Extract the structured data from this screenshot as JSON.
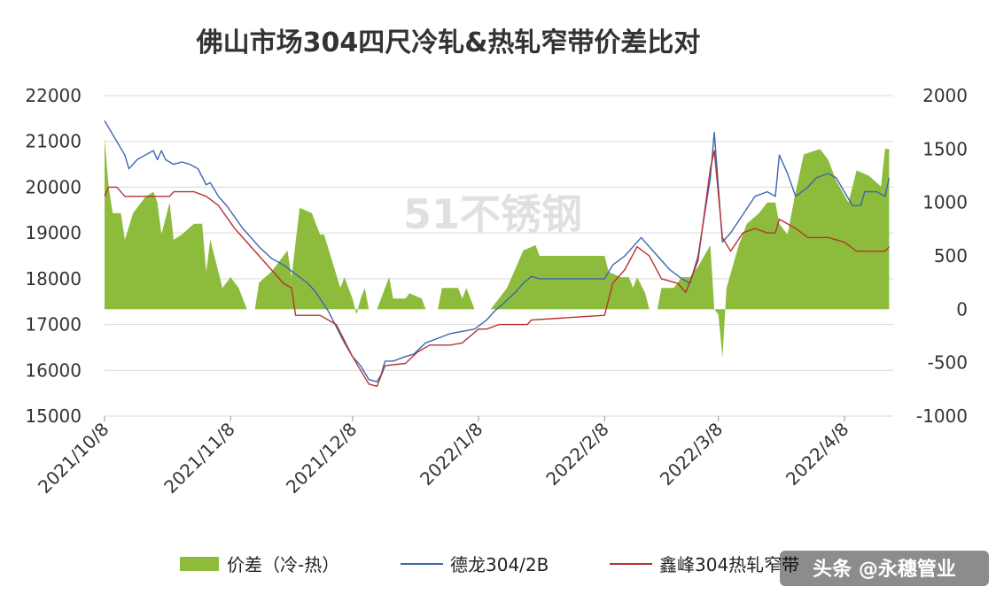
{
  "watermark": "51不锈钢",
  "source_credit": "头条 @永穗管业",
  "colors": {
    "area": "#8dbb3c",
    "line1": "#3a66b0",
    "line2": "#b83232",
    "grid": "#d9d9d9"
  },
  "chart_data": {
    "type": "line",
    "title": "佛山市场304四尺冷轧&热轧窄带价差比对",
    "x_start": "2021/10/8",
    "x_end": "2022/4/20",
    "x_ticks": [
      "2021/10/8",
      "2021/11/8",
      "2021/12/8",
      "2022/1/8",
      "2022/2/8",
      "2022/3/8",
      "2022/4/8"
    ],
    "y_left": {
      "min": 15000,
      "max": 22000,
      "ticks": [
        15000,
        16000,
        17000,
        18000,
        19000,
        20000,
        21000,
        22000
      ]
    },
    "y_right": {
      "min": -1000,
      "max": 2000,
      "ticks": [
        -1000,
        -500,
        0,
        500,
        1000,
        1500,
        2000
      ]
    },
    "grid": true,
    "legend_position": "bottom",
    "series": [
      {
        "name": "价差（冷-热）",
        "kind": "area",
        "axis": "right",
        "points": [
          [
            "2021/10/8",
            1600
          ],
          [
            "2021/10/9",
            1150
          ],
          [
            "2021/10/10",
            900
          ],
          [
            "2021/10/12",
            900
          ],
          [
            "2021/10/13",
            650
          ],
          [
            "2021/10/15",
            900
          ],
          [
            "2021/10/18",
            1050
          ],
          [
            "2021/10/20",
            1100
          ],
          [
            "2021/10/21",
            1000
          ],
          [
            "2021/10/22",
            700
          ],
          [
            "2021/10/24",
            1000
          ],
          [
            "2021/10/25",
            650
          ],
          [
            "2021/10/27",
            700
          ],
          [
            "2021/10/30",
            800
          ],
          [
            "2021/11/1",
            800
          ],
          [
            "2021/11/2",
            350
          ],
          [
            "2021/11/3",
            650
          ],
          [
            "2021/11/5",
            350
          ],
          [
            "2021/11/6",
            200
          ],
          [
            "2021/11/8",
            300
          ],
          [
            "2021/11/10",
            200
          ],
          [
            "2021/11/12",
            0
          ],
          [
            "2021/11/14",
            0
          ],
          [
            "2021/11/15",
            250
          ],
          [
            "2021/11/18",
            350
          ],
          [
            "2021/11/20",
            450
          ],
          [
            "2021/11/22",
            550
          ],
          [
            "2021/11/23",
            300
          ],
          [
            "2021/11/25",
            950
          ],
          [
            "2021/11/28",
            900
          ],
          [
            "2021/11/30",
            700
          ],
          [
            "2021/12/1",
            700
          ],
          [
            "2021/12/3",
            450
          ],
          [
            "2021/12/5",
            200
          ],
          [
            "2021/12/6",
            300
          ],
          [
            "2021/12/8",
            100
          ],
          [
            "2021/12/9",
            -50
          ],
          [
            "2021/12/10",
            100
          ],
          [
            "2021/12/11",
            200
          ],
          [
            "2021/12/12",
            0
          ],
          [
            "2021/12/14",
            0
          ],
          [
            "2021/12/15",
            100
          ],
          [
            "2021/12/17",
            300
          ],
          [
            "2021/12/18",
            100
          ],
          [
            "2021/12/21",
            100
          ],
          [
            "2021/12/22",
            150
          ],
          [
            "2021/12/25",
            100
          ],
          [
            "2021/12/26",
            0
          ],
          [
            "2021/12/29",
            0
          ],
          [
            "2021/12/30",
            200
          ],
          [
            "2022/1/3",
            200
          ],
          [
            "2022/1/4",
            100
          ],
          [
            "2022/1/5",
            200
          ],
          [
            "2022/1/7",
            0
          ],
          [
            "2022/1/11",
            0
          ],
          [
            "2022/1/12",
            50
          ],
          [
            "2022/1/15",
            200
          ],
          [
            "2022/1/19",
            550
          ],
          [
            "2022/1/22",
            600
          ],
          [
            "2022/1/23",
            500
          ],
          [
            "2022/2/8",
            500
          ],
          [
            "2022/2/9",
            350
          ],
          [
            "2022/2/12",
            300
          ],
          [
            "2022/2/14",
            300
          ],
          [
            "2022/2/15",
            200
          ],
          [
            "2022/2/16",
            300
          ],
          [
            "2022/2/18",
            150
          ],
          [
            "2022/2/19",
            0
          ],
          [
            "2022/2/21",
            0
          ],
          [
            "2022/2/22",
            200
          ],
          [
            "2022/2/25",
            200
          ],
          [
            "2022/2/27",
            300
          ],
          [
            "2022/3/1",
            300
          ],
          [
            "2022/3/3",
            400
          ],
          [
            "2022/3/6",
            600
          ],
          [
            "2022/3/7",
            0
          ],
          [
            "2022/3/8",
            -50
          ],
          [
            "2022/3/9",
            -450
          ],
          [
            "2022/3/10",
            200
          ],
          [
            "2022/3/13",
            600
          ],
          [
            "2022/3/15",
            800
          ],
          [
            "2022/3/18",
            900
          ],
          [
            "2022/3/20",
            1000
          ],
          [
            "2022/3/22",
            1000
          ],
          [
            "2022/3/23",
            800
          ],
          [
            "2022/3/25",
            700
          ],
          [
            "2022/3/27",
            1100
          ],
          [
            "2022/3/29",
            1450
          ],
          [
            "2022/4/2",
            1500
          ],
          [
            "2022/4/4",
            1400
          ],
          [
            "2022/4/6",
            1200
          ],
          [
            "2022/4/9",
            1000
          ],
          [
            "2022/4/11",
            1300
          ],
          [
            "2022/4/14",
            1250
          ],
          [
            "2022/4/17",
            1150
          ],
          [
            "2022/4/18",
            1500
          ],
          [
            "2022/4/19",
            1500
          ]
        ]
      },
      {
        "name": "德龙304/2B",
        "kind": "line",
        "axis": "left",
        "points": [
          [
            "2021/10/8",
            21450
          ],
          [
            "2021/10/9",
            21300
          ],
          [
            "2021/10/11",
            21000
          ],
          [
            "2021/10/13",
            20700
          ],
          [
            "2021/10/14",
            20400
          ],
          [
            "2021/10/16",
            20600
          ],
          [
            "2021/10/18",
            20700
          ],
          [
            "2021/10/20",
            20800
          ],
          [
            "2021/10/21",
            20600
          ],
          [
            "2021/10/22",
            20800
          ],
          [
            "2021/10/23",
            20600
          ],
          [
            "2021/10/25",
            20500
          ],
          [
            "2021/10/27",
            20550
          ],
          [
            "2021/10/29",
            20500
          ],
          [
            "2021/10/31",
            20400
          ],
          [
            "2021/11/2",
            20050
          ],
          [
            "2021/11/3",
            20100
          ],
          [
            "2021/11/5",
            19800
          ],
          [
            "2021/11/7",
            19600
          ],
          [
            "2021/11/9",
            19350
          ],
          [
            "2021/11/11",
            19100
          ],
          [
            "2021/11/13",
            18900
          ],
          [
            "2021/11/15",
            18700
          ],
          [
            "2021/11/18",
            18450
          ],
          [
            "2021/11/21",
            18300
          ],
          [
            "2021/11/24",
            18100
          ],
          [
            "2021/11/27",
            17900
          ],
          [
            "2021/11/29",
            17700
          ],
          [
            "2021/12/2",
            17300
          ],
          [
            "2021/12/4",
            16950
          ],
          [
            "2021/12/6",
            16600
          ],
          [
            "2021/12/8",
            16300
          ],
          [
            "2021/12/10",
            16100
          ],
          [
            "2021/12/12",
            15800
          ],
          [
            "2021/12/14",
            15750
          ],
          [
            "2021/12/15",
            15900
          ],
          [
            "2021/12/16",
            16200
          ],
          [
            "2021/12/18",
            16200
          ],
          [
            "2021/12/21",
            16300
          ],
          [
            "2021/12/23",
            16350
          ],
          [
            "2021/12/26",
            16600
          ],
          [
            "2021/12/29",
            16700
          ],
          [
            "2022/1/1",
            16800
          ],
          [
            "2022/1/4",
            16850
          ],
          [
            "2022/1/7",
            16900
          ],
          [
            "2022/1/10",
            17100
          ],
          [
            "2022/1/12",
            17300
          ],
          [
            "2022/1/14",
            17450
          ],
          [
            "2022/1/17",
            17700
          ],
          [
            "2022/1/19",
            17900
          ],
          [
            "2022/1/21",
            18050
          ],
          [
            "2022/1/23",
            18000
          ],
          [
            "2022/1/25",
            18000
          ],
          [
            "2022/2/8",
            18000
          ],
          [
            "2022/2/10",
            18300
          ],
          [
            "2022/2/13",
            18500
          ],
          [
            "2022/2/15",
            18700
          ],
          [
            "2022/2/17",
            18900
          ],
          [
            "2022/2/19",
            18700
          ],
          [
            "2022/2/21",
            18500
          ],
          [
            "2022/2/24",
            18200
          ],
          [
            "2022/2/27",
            18000
          ],
          [
            "2022/3/1",
            17900
          ],
          [
            "2022/3/3",
            18500
          ],
          [
            "2022/3/6",
            20200
          ],
          [
            "2022/3/7",
            21200
          ],
          [
            "2022/3/8",
            20000
          ],
          [
            "2022/3/9",
            18800
          ],
          [
            "2022/3/11",
            19000
          ],
          [
            "2022/3/14",
            19400
          ],
          [
            "2022/3/17",
            19800
          ],
          [
            "2022/3/20",
            19900
          ],
          [
            "2022/3/22",
            19800
          ],
          [
            "2022/3/23",
            20700
          ],
          [
            "2022/3/25",
            20300
          ],
          [
            "2022/3/27",
            19800
          ],
          [
            "2022/3/30",
            20000
          ],
          [
            "2022/4/1",
            20200
          ],
          [
            "2022/4/4",
            20300
          ],
          [
            "2022/4/6",
            20200
          ],
          [
            "2022/4/8",
            19900
          ],
          [
            "2022/4/10",
            19600
          ],
          [
            "2022/4/12",
            19600
          ],
          [
            "2022/4/13",
            19900
          ],
          [
            "2022/4/16",
            19900
          ],
          [
            "2022/4/18",
            19800
          ],
          [
            "2022/4/19",
            20200
          ]
        ]
      },
      {
        "name": "鑫峰304热轧窄带",
        "kind": "line",
        "axis": "left",
        "points": [
          [
            "2021/10/8",
            19800
          ],
          [
            "2021/10/9",
            20000
          ],
          [
            "2021/10/11",
            20000
          ],
          [
            "2021/10/13",
            19800
          ],
          [
            "2021/10/20",
            19800
          ],
          [
            "2021/10/24",
            19800
          ],
          [
            "2021/10/25",
            19900
          ],
          [
            "2021/10/30",
            19900
          ],
          [
            "2021/11/2",
            19800
          ],
          [
            "2021/11/5",
            19600
          ],
          [
            "2021/11/9",
            19100
          ],
          [
            "2021/11/12",
            18800
          ],
          [
            "2021/11/15",
            18500
          ],
          [
            "2021/11/18",
            18200
          ],
          [
            "2021/11/21",
            17900
          ],
          [
            "2021/11/23",
            17800
          ],
          [
            "2021/11/24",
            17200
          ],
          [
            "2021/11/28",
            17200
          ],
          [
            "2021/11/30",
            17200
          ],
          [
            "2021/12/2",
            17100
          ],
          [
            "2021/12/4",
            17000
          ],
          [
            "2021/12/6",
            16650
          ],
          [
            "2021/12/8",
            16300
          ],
          [
            "2021/12/10",
            16000
          ],
          [
            "2021/12/12",
            15700
          ],
          [
            "2021/12/14",
            15650
          ],
          [
            "2021/12/16",
            16100
          ],
          [
            "2021/12/21",
            16150
          ],
          [
            "2021/12/24",
            16400
          ],
          [
            "2021/12/27",
            16550
          ],
          [
            "2022/1/1",
            16550
          ],
          [
            "2022/1/4",
            16600
          ],
          [
            "2022/1/8",
            16900
          ],
          [
            "2022/1/10",
            16900
          ],
          [
            "2022/1/13",
            17000
          ],
          [
            "2022/1/20",
            17000
          ],
          [
            "2022/1/21",
            17100
          ],
          [
            "2022/2/8",
            17200
          ],
          [
            "2022/2/10",
            17900
          ],
          [
            "2022/2/13",
            18200
          ],
          [
            "2022/2/16",
            18700
          ],
          [
            "2022/2/19",
            18500
          ],
          [
            "2022/2/22",
            18000
          ],
          [
            "2022/2/26",
            17900
          ],
          [
            "2022/2/28",
            17700
          ],
          [
            "2022/3/3",
            18400
          ],
          [
            "2022/3/6",
            20400
          ],
          [
            "2022/3/7",
            20800
          ],
          [
            "2022/3/9",
            18900
          ],
          [
            "2022/3/11",
            18600
          ],
          [
            "2022/3/14",
            19000
          ],
          [
            "2022/3/17",
            19100
          ],
          [
            "2022/3/20",
            19000
          ],
          [
            "2022/3/22",
            19000
          ],
          [
            "2022/3/23",
            19300
          ],
          [
            "2022/3/27",
            19100
          ],
          [
            "2022/3/30",
            18900
          ],
          [
            "2022/4/4",
            18900
          ],
          [
            "2022/4/8",
            18800
          ],
          [
            "2022/4/11",
            18600
          ],
          [
            "2022/4/14",
            18600
          ],
          [
            "2022/4/18",
            18600
          ],
          [
            "2022/4/19",
            18700
          ]
        ]
      }
    ]
  }
}
